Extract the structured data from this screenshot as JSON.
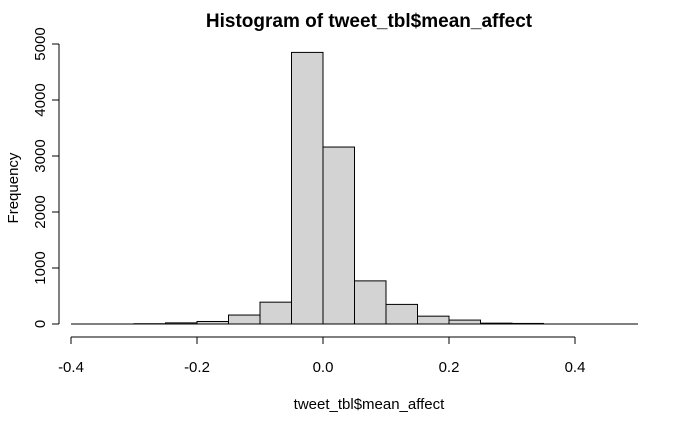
{
  "chart_data": {
    "type": "bar",
    "title": "Histogram of tweet_tbl$mean_affect",
    "xlabel": "tweet_tbl$mean_affect",
    "ylabel": "Frequency",
    "xlim": [
      -0.4,
      0.5
    ],
    "ylim": [
      0,
      5000
    ],
    "x_ticks": [
      -0.4,
      -0.2,
      0.0,
      0.2,
      0.4
    ],
    "x_tick_labels": [
      "-0.4",
      "-0.2",
      "0.0",
      "0.2",
      "0.4"
    ],
    "y_ticks": [
      0,
      1000,
      2000,
      3000,
      4000,
      5000
    ],
    "y_tick_labels": [
      "0",
      "1000",
      "2000",
      "3000",
      "4000",
      "5000"
    ],
    "bin_width": 0.05,
    "bins": [
      {
        "start": -0.4,
        "end": -0.35,
        "count": 0
      },
      {
        "start": -0.35,
        "end": -0.3,
        "count": 0
      },
      {
        "start": -0.3,
        "end": -0.25,
        "count": 5
      },
      {
        "start": -0.25,
        "end": -0.2,
        "count": 20
      },
      {
        "start": -0.2,
        "end": -0.15,
        "count": 45
      },
      {
        "start": -0.15,
        "end": -0.1,
        "count": 160
      },
      {
        "start": -0.1,
        "end": -0.05,
        "count": 390
      },
      {
        "start": -0.05,
        "end": 0.0,
        "count": 4850
      },
      {
        "start": 0.0,
        "end": 0.05,
        "count": 3160
      },
      {
        "start": 0.05,
        "end": 0.1,
        "count": 770
      },
      {
        "start": 0.1,
        "end": 0.15,
        "count": 350
      },
      {
        "start": 0.15,
        "end": 0.2,
        "count": 140
      },
      {
        "start": 0.2,
        "end": 0.25,
        "count": 70
      },
      {
        "start": 0.25,
        "end": 0.3,
        "count": 15
      },
      {
        "start": 0.3,
        "end": 0.35,
        "count": 10
      },
      {
        "start": 0.35,
        "end": 0.4,
        "count": 0
      },
      {
        "start": 0.4,
        "end": 0.45,
        "count": 0
      },
      {
        "start": 0.45,
        "end": 0.5,
        "count": 0
      }
    ],
    "bar_fill": "#d3d3d3",
    "bar_stroke": "#000000",
    "grid": false,
    "legend": "none"
  }
}
